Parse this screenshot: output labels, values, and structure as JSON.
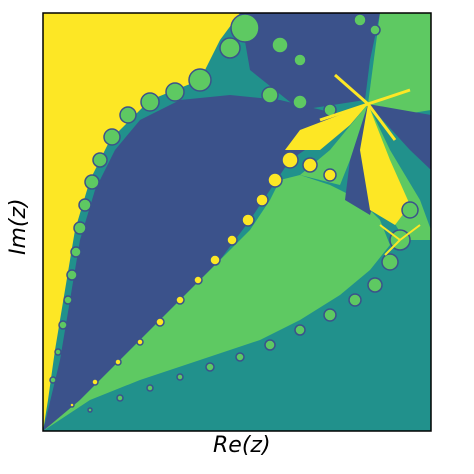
{
  "figure": {
    "xlabel": "Re(z)",
    "ylabel": "Im(z)",
    "colors": {
      "yellow": "#FDE725",
      "navy": "#3B528B",
      "green": "#5EC962",
      "teal": "#21918C",
      "frame": "#000000"
    }
  }
}
